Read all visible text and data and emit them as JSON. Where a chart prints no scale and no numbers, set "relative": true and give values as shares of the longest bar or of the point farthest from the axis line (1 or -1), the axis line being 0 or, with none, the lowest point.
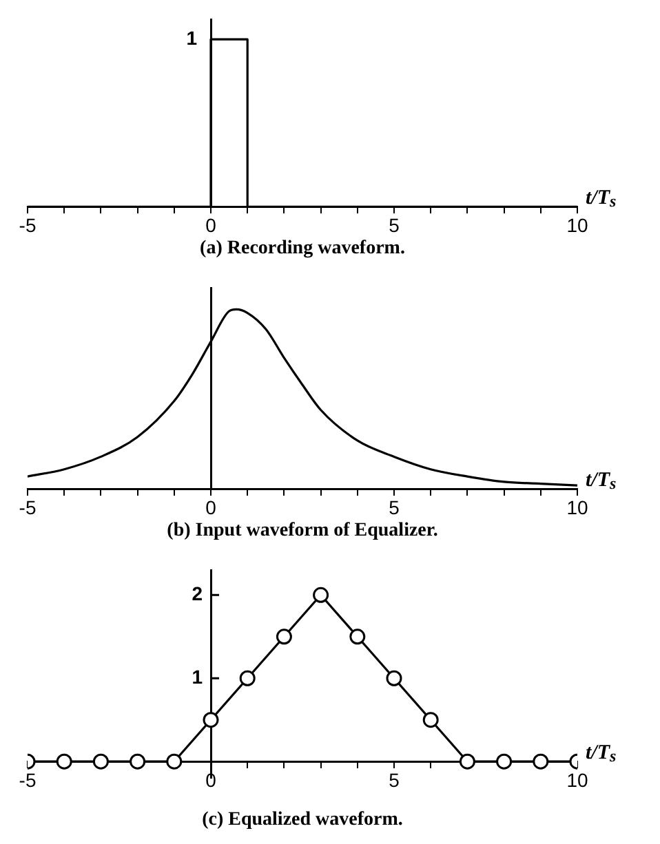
{
  "chart_data": [
    {
      "type": "line",
      "title": "(a) Recording waveform.",
      "xlabel": "t/T$_{s}$",
      "relative": true,
      "marker": "none",
      "tick_labels": "x",
      "xlim": [
        -5,
        10
      ],
      "xticks": [
        -5,
        {
          "value": -4,
          "label": null
        },
        {
          "value": -3,
          "label": null
        },
        {
          "value": -2,
          "label": null
        },
        {
          "value": -1,
          "label": null
        },
        0,
        {
          "value": 1,
          "label": null
        },
        {
          "value": 2,
          "label": null
        },
        {
          "value": 3,
          "label": null
        },
        {
          "value": 4,
          "label": null
        },
        5,
        {
          "value": 6,
          "label": null
        },
        {
          "value": 7,
          "label": null
        },
        {
          "value": 8,
          "label": null
        },
        {
          "value": 9,
          "label": null
        },
        10
      ],
      "annotations": [
        {
          "text": "1",
          "x": 0,
          "y": 1
        }
      ],
      "series": [
        {
          "color": "#000000",
          "x": [
            -5,
            0,
            0,
            1,
            1,
            10
          ],
          "values": [
            0,
            0,
            1,
            1,
            0,
            0
          ]
        }
      ]
    },
    {
      "type": "line",
      "title": "(b) Input waveform of Equalizer.",
      "xlabel": "t/T$_{s}$",
      "relative": true,
      "marker": "none",
      "tick_labels": "x",
      "xlim": [
        -5,
        10
      ],
      "xticks": [
        -5,
        {
          "value": -4,
          "label": null
        },
        {
          "value": -3,
          "label": null
        },
        {
          "value": -2,
          "label": null
        },
        {
          "value": -1,
          "label": null
        },
        0,
        {
          "value": 1,
          "label": null
        },
        {
          "value": 2,
          "label": null
        },
        {
          "value": 3,
          "label": null
        },
        {
          "value": 4,
          "label": null
        },
        5,
        {
          "value": 6,
          "label": null
        },
        {
          "value": 7,
          "label": null
        },
        {
          "value": 8,
          "label": null
        },
        {
          "value": 9,
          "label": null
        },
        10
      ],
      "series": [
        {
          "color": "#000000",
          "x": [
            -5,
            -4,
            -3,
            -2,
            -1,
            -0.5,
            0,
            0.5,
            0.7,
            1,
            1.5,
            2,
            2.5,
            3,
            4,
            5,
            6,
            7,
            8,
            9,
            10
          ],
          "values": [
            0.07,
            0.11,
            0.18,
            0.29,
            0.49,
            0.64,
            0.82,
            0.99,
            1,
            0.98,
            0.89,
            0.73,
            0.58,
            0.44,
            0.27,
            0.18,
            0.11,
            0.07,
            0.04,
            0.03,
            0.02
          ]
        }
      ]
    },
    {
      "type": "line",
      "title": "(c) Equalized waveform.",
      "xlabel": "t/T$_{s}$",
      "marker": "circle",
      "ylim": [
        -0.2,
        2.3
      ],
      "yticks": [
        1,
        2
      ],
      "xlim": [
        -5,
        10
      ],
      "xticks": [
        -5,
        {
          "value": -4,
          "label": null
        },
        {
          "value": -3,
          "label": null
        },
        {
          "value": -2,
          "label": null
        },
        {
          "value": -1,
          "label": null
        },
        0,
        {
          "value": 1,
          "label": null
        },
        {
          "value": 2,
          "label": null
        },
        {
          "value": 3,
          "label": null
        },
        {
          "value": 4,
          "label": null
        },
        5,
        {
          "value": 6,
          "label": null
        },
        {
          "value": 7,
          "label": null
        },
        {
          "value": 8,
          "label": null
        },
        {
          "value": 9,
          "label": null
        },
        10
      ],
      "series": [
        {
          "color": "#000000",
          "x": [
            -5,
            -4,
            -3,
            -2,
            -1,
            0,
            1,
            2,
            3,
            4,
            5,
            6,
            7,
            8,
            9,
            10
          ],
          "values": [
            0,
            0,
            0,
            0,
            0,
            0.5,
            1,
            1.5,
            2,
            1.5,
            1,
            0.5,
            0,
            0,
            0,
            0
          ]
        }
      ]
    }
  ]
}
